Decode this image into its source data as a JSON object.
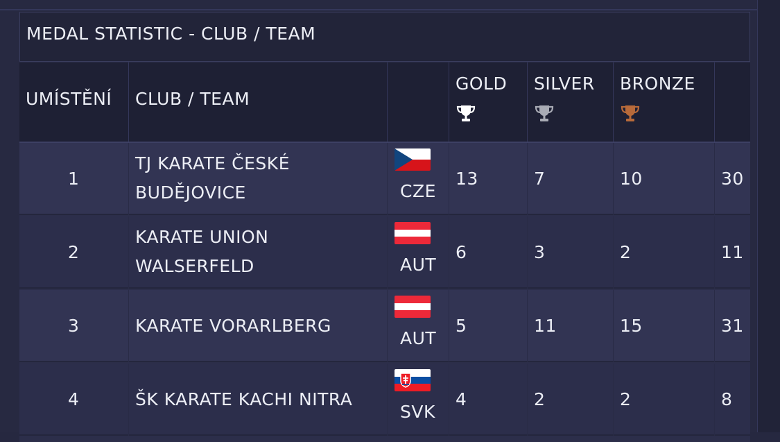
{
  "title": "MEDAL STATISTIC - CLUB / TEAM",
  "columns": {
    "rank": "UMÍSTĚNÍ",
    "club": "CLUB / TEAM",
    "gold": "GOLD",
    "silver": "SILVER",
    "bronze": "BRONZE"
  },
  "colors": {
    "gold_trophy": "#ffffff",
    "silver_trophy": "#a9abb5",
    "bronze_trophy": "#b86a3a"
  },
  "rows": [
    {
      "rank": "1",
      "club_line1": "TJ KARATE ČESKÉ",
      "club_line2": "BUDĚJOVICE",
      "flag": "czech-flag",
      "country": "CZE",
      "gold": "13",
      "silver": "7",
      "bronze": "10",
      "total": "30"
    },
    {
      "rank": "2",
      "club_line1": "KARATE UNION",
      "club_line2": "WALSERFELD",
      "flag": "austria-flag",
      "country": "AUT",
      "gold": "6",
      "silver": "3",
      "bronze": "2",
      "total": "11"
    },
    {
      "rank": "3",
      "club_line1": "KARATE VORARLBERG",
      "club_line2": "",
      "flag": "austria-flag",
      "country": "AUT",
      "gold": "5",
      "silver": "11",
      "bronze": "15",
      "total": "31"
    },
    {
      "rank": "4",
      "club_line1": "ŠK KARATE KACHI NITRA",
      "club_line2": "",
      "flag": "slovakia-flag",
      "country": "SVK",
      "gold": "4",
      "silver": "2",
      "bronze": "2",
      "total": "8"
    }
  ]
}
